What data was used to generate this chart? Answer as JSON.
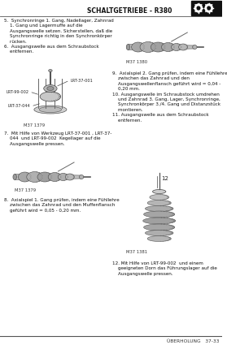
{
  "page_bg": "#ffffff",
  "header_text": "SCHALTGETRIEBE - R380",
  "footer_right": "ÜBERHOLUNG   37-33",
  "body_text_color": "#111111",
  "text_56": "5.  Synchronringe 1. Gang, Nadellager, Zahnrad\n    1. Gang und Lagermuffe auf die\n    Ausgangswelle setzen. Sicherstellen, daß die\n    Synchronringe richtig in den Synchronkörper\n    rücken.\n6.  Ausgangswelle aus dem Schraubstock\n    entfernen.",
  "text_7": "7.  Mit Hilfe von Werkzeug LRT-37-001 , LRT-37-\n    044  und LRT-99-002  Kegellager auf die\n    Ausgangswelle pressen.",
  "text_8": "8.  Axialspiel 1. Gang prüfen, indem eine Fühllehre\n    zwischen das Zahnrad und den Muffenflansch\n    geführt wird = 0,05 - 0,20 mm.",
  "text_9_11": "9.  Axialspiel 2. Gang prüfen, indem eine Fühllehre\n    zwischen das Zahnrad und den\n    Ausgangswellenflansch geführt wird = 0,04 -\n    0,20 mm.\n10. Ausgangswelle im Schraubstock umdrehen\n    und Zahnrad 3. Gang, Lager, Synchronringe,\n    Synchronkörper 3./4. Gang und Distanzstück\n    montieren.\n11. Ausgangswelle aus dem Schraubstock\n    entfernen.",
  "text_12": "12. Mit Hilfe von LRT-99-002  und einem\n    geeigneten Dorn das Führungslager auf die\n    Ausgangswelle pressen.",
  "cap_fig1": "M37 1379",
  "cap_fig2": "M37 1380",
  "cap_fig3": "M37 1379",
  "cap_fig4": "M37 1381",
  "lbl_lrt37001": "LRT-37-001",
  "lbl_lrt99002": "LRT-99-002",
  "lbl_lrt37044": "LRT-37-044",
  "lbl_12": "12"
}
